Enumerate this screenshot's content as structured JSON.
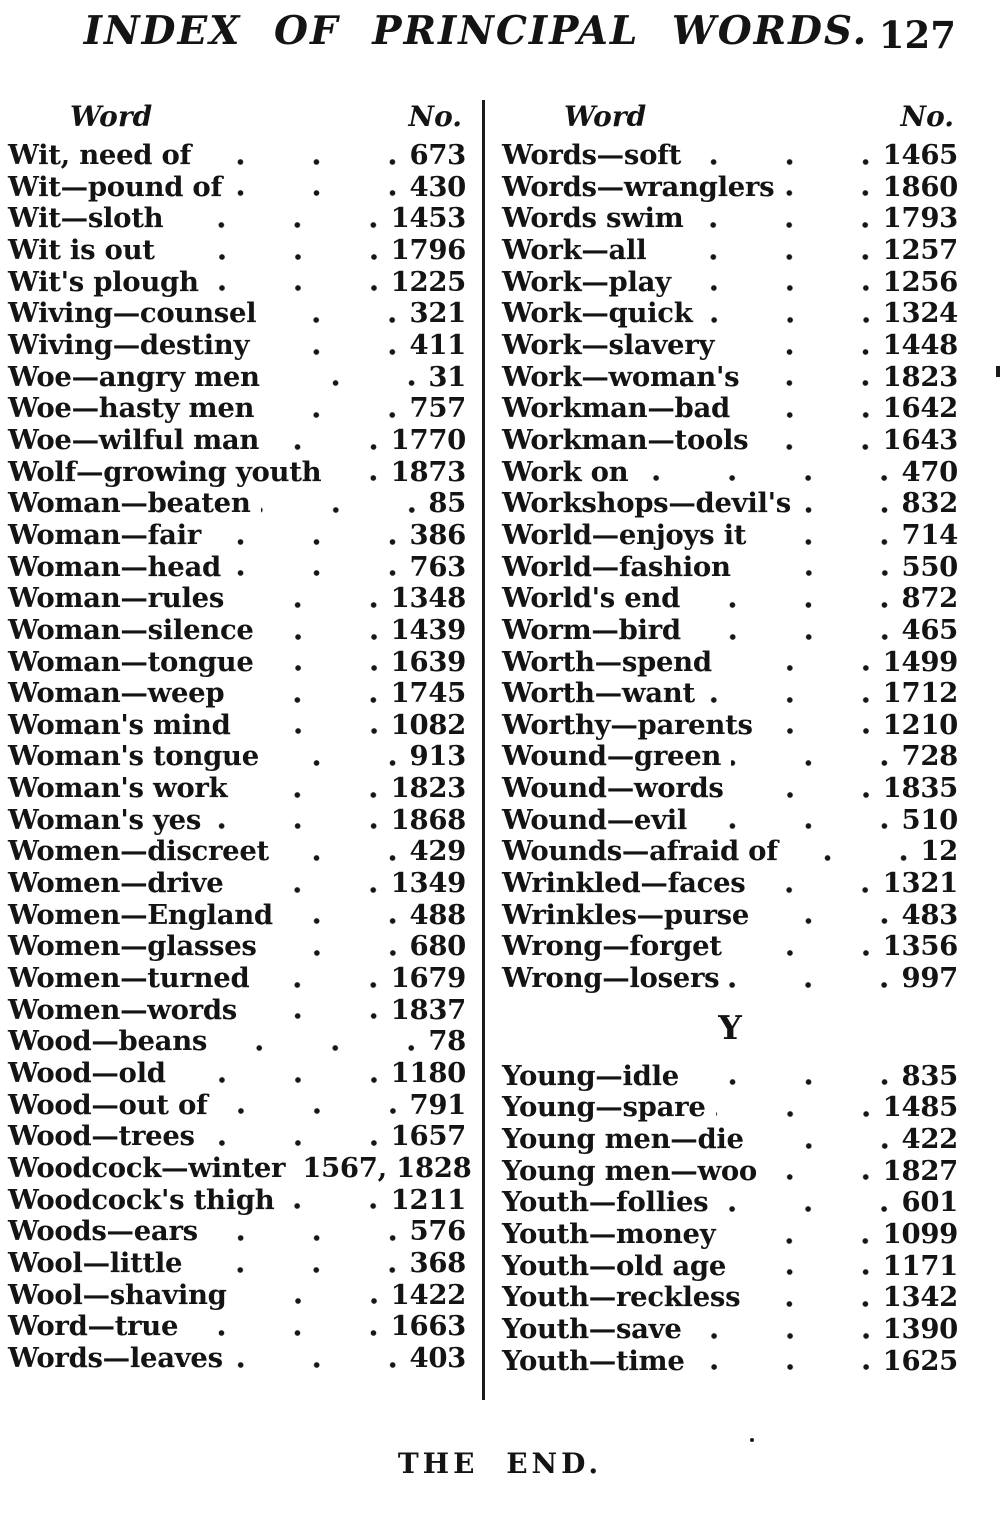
{
  "header": {
    "title": "INDEX OF PRINCIPAL WORDS.",
    "page_number": "127"
  },
  "table": {
    "word_header": "Word",
    "no_header": "No.",
    "left_entries": [
      {
        "label": "Wit, need of",
        "no": "673"
      },
      {
        "label": "Wit—pound of",
        "no": "430"
      },
      {
        "label": "Wit—sloth",
        "no": "1453"
      },
      {
        "label": "Wit is out",
        "no": "1796"
      },
      {
        "label": "Wit's plough",
        "no": "1225"
      },
      {
        "label": "Wiving—counsel",
        "no": "321"
      },
      {
        "label": "Wiving—destiny",
        "no": "411"
      },
      {
        "label": "Woe—angry men",
        "no": "31"
      },
      {
        "label": "Woe—hasty men",
        "no": "757"
      },
      {
        "label": "Woe—wilful man",
        "no": "1770"
      },
      {
        "label": "Wolf—growing youth",
        "no": "1873"
      },
      {
        "label": "Woman—beaten",
        "no": "85"
      },
      {
        "label": "Woman—fair",
        "no": "386"
      },
      {
        "label": "Woman—head",
        "no": "763"
      },
      {
        "label": "Woman—rules",
        "no": "1348"
      },
      {
        "label": "Woman—silence",
        "no": "1439"
      },
      {
        "label": "Woman—tongue",
        "no": "1639"
      },
      {
        "label": "Woman—weep",
        "no": "1745"
      },
      {
        "label": "Woman's mind",
        "no": "1082"
      },
      {
        "label": "Woman's tongue",
        "no": "913"
      },
      {
        "label": "Woman's work",
        "no": "1823"
      },
      {
        "label": "Woman's yes",
        "no": "1868"
      },
      {
        "label": "Women—discreet",
        "no": "429"
      },
      {
        "label": "Women—drive",
        "no": "1349"
      },
      {
        "label": "Women—England",
        "no": "488"
      },
      {
        "label": "Women—glasses",
        "no": "680"
      },
      {
        "label": "Women—turned",
        "no": "1679"
      },
      {
        "label": "Women—words",
        "no": "1837"
      },
      {
        "label": "Wood—beans",
        "no": "78"
      },
      {
        "label": "Wood—old",
        "no": "1180"
      },
      {
        "label": "Wood—out of",
        "no": "791"
      },
      {
        "label": "Wood—trees",
        "no": "1657"
      },
      {
        "label": "Woodcock—winter",
        "no": "1567, 1828"
      },
      {
        "label": "Woodcock's thigh",
        "no": "1211"
      },
      {
        "label": "Woods—ears",
        "no": "576"
      },
      {
        "label": "Wool—little",
        "no": "368"
      },
      {
        "label": "Wool—shaving",
        "no": "1422"
      },
      {
        "label": "Word—true",
        "no": "1663"
      },
      {
        "label": "Words—leaves",
        "no": "403"
      }
    ],
    "right_entries_w": [
      {
        "label": "Words—soft",
        "no": "1465"
      },
      {
        "label": "Words—wranglers",
        "no": "1860"
      },
      {
        "label": "Words swim",
        "no": "1793"
      },
      {
        "label": "Work—all",
        "no": "1257"
      },
      {
        "label": "Work—play",
        "no": "1256"
      },
      {
        "label": "Work—quick",
        "no": "1324"
      },
      {
        "label": "Work—slavery",
        "no": "1448"
      },
      {
        "label": "Work—woman's",
        "no": "1823"
      },
      {
        "label": "Workman—bad",
        "no": "1642"
      },
      {
        "label": "Workman—tools",
        "no": "1643"
      },
      {
        "label": "Work on",
        "no": "470"
      },
      {
        "label": "Workshops—devil's",
        "no": "832"
      },
      {
        "label": "World—enjoys it",
        "no": "714"
      },
      {
        "label": "World—fashion",
        "no": "550"
      },
      {
        "label": "World's end",
        "no": "872"
      },
      {
        "label": "Worm—bird",
        "no": "465"
      },
      {
        "label": "Worth—spend",
        "no": "1499"
      },
      {
        "label": "Worth—want",
        "no": "1712"
      },
      {
        "label": "Worthy—parents",
        "no": "1210"
      },
      {
        "label": "Wound—green",
        "no": "728"
      },
      {
        "label": "Wound—words",
        "no": "1835"
      },
      {
        "label": "Wound—evil",
        "no": "510"
      },
      {
        "label": "Wounds—afraid of",
        "no": "12"
      },
      {
        "label": "Wrinkled—faces",
        "no": "1321"
      },
      {
        "label": "Wrinkles—purse",
        "no": "483"
      },
      {
        "label": "Wrong—forget",
        "no": "1356"
      },
      {
        "label": "Wrong—losers",
        "no": "997"
      }
    ],
    "section_letter": "Y",
    "right_entries_y": [
      {
        "label": "Young—idle",
        "no": "835"
      },
      {
        "label": "Young—spare",
        "no": "1485"
      },
      {
        "label": "Young men—die",
        "no": "422"
      },
      {
        "label": "Young men—woo",
        "no": "1827"
      },
      {
        "label": "Youth—follies",
        "no": "601"
      },
      {
        "label": "Youth—money",
        "no": "1099"
      },
      {
        "label": "Youth—old age",
        "no": "1171"
      },
      {
        "label": "Youth—reckless",
        "no": "1342"
      },
      {
        "label": "Youth—save",
        "no": "1390"
      },
      {
        "label": "Youth—time",
        "no": "1625"
      }
    ]
  },
  "footer": {
    "text": "THE END."
  },
  "colors": {
    "ink": "#141414",
    "paper": "#ffffff"
  }
}
